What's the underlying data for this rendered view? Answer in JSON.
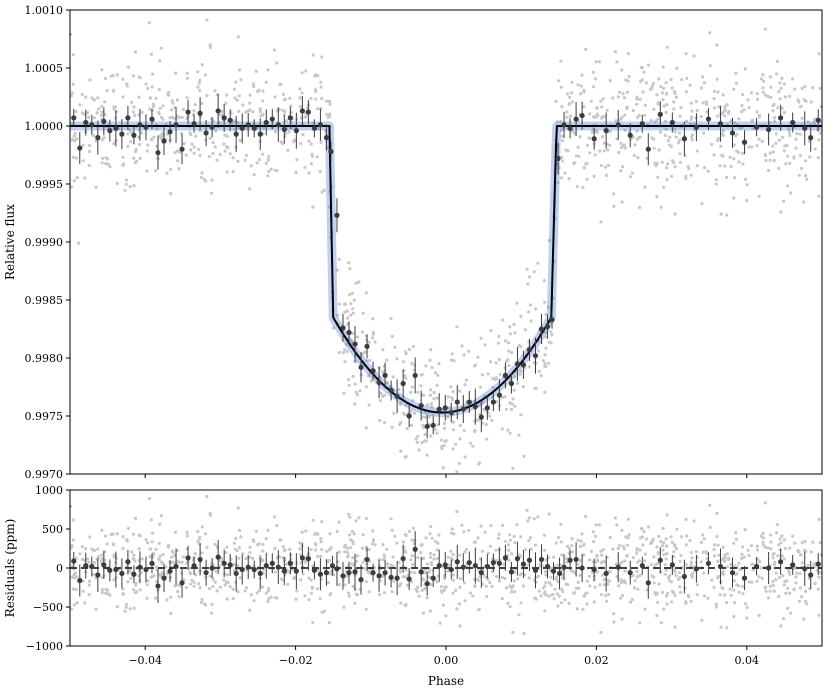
{
  "chart_data": [
    {
      "type": "scatter",
      "panel": "light-curve",
      "xlabel": "",
      "ylabel": "Relative flux",
      "xlim": [
        -0.05,
        0.05
      ],
      "ylim": [
        0.997,
        1.001
      ],
      "xticks": [
        -0.04,
        -0.02,
        0.0,
        0.02,
        0.04
      ],
      "yticks": [
        0.997,
        0.9975,
        0.998,
        0.9985,
        0.999,
        0.9995,
        1.0,
        1.0005,
        1.001
      ],
      "ytick_labels": [
        "0.9970",
        "0.9975",
        "0.9980",
        "0.9985",
        "0.9990",
        "0.9995",
        "1.0000",
        "1.0005",
        "1.0010"
      ],
      "transit": {
        "baseline": 1.0,
        "ingress_start": -0.0155,
        "full_start": -0.015,
        "full_end": 0.014,
        "egress_end": 0.0147,
        "depth_at_contact": 0.99835,
        "min_flux": 0.99753,
        "min_phase": -0.0005
      },
      "binned": [
        [
          -0.0495,
          1.00007
        ],
        [
          -0.0487,
          0.99981
        ],
        [
          -0.0479,
          1.00003
        ],
        [
          -0.0471,
          1.00001
        ],
        [
          -0.0463,
          0.9999
        ],
        [
          -0.0455,
          1.00004
        ],
        [
          -0.0447,
          0.99996
        ],
        [
          -0.0439,
          0.99998
        ],
        [
          -0.0431,
          0.99993
        ],
        [
          -0.0423,
          1.00007
        ],
        [
          -0.0415,
          0.99992
        ],
        [
          -0.0407,
          1.00001
        ],
        [
          -0.0399,
          0.99999
        ],
        [
          -0.0391,
          1.00006
        ],
        [
          -0.0383,
          0.99977
        ],
        [
          -0.0375,
          0.99987
        ],
        [
          -0.0367,
          0.99995
        ],
        [
          -0.0359,
          1.00001
        ],
        [
          -0.0351,
          0.9998
        ],
        [
          -0.0343,
          1.00012
        ],
        [
          -0.0335,
          1.00002
        ],
        [
          -0.0327,
          1.00011
        ],
        [
          -0.0319,
          0.99994
        ],
        [
          -0.0311,
          0.99999
        ],
        [
          -0.0303,
          1.00013
        ],
        [
          -0.0295,
          1.00007
        ],
        [
          -0.0287,
          1.00005
        ],
        [
          -0.0279,
          0.99993
        ],
        [
          -0.0271,
          0.99998
        ],
        [
          -0.0263,
          1.00001
        ],
        [
          -0.0255,
          0.99998
        ],
        [
          -0.0247,
          0.99993
        ],
        [
          -0.0239,
          1.00003
        ],
        [
          -0.0231,
          1.00006
        ],
        [
          -0.0223,
          1.00001
        ],
        [
          -0.0215,
          0.99997
        ],
        [
          -0.0207,
          1.00007
        ],
        [
          -0.0199,
          0.99996
        ],
        [
          -0.0191,
          1.00013
        ],
        [
          -0.0183,
          1.00012
        ],
        [
          -0.0175,
          0.99998
        ],
        [
          -0.0167,
          1.00001
        ],
        [
          -0.0159,
          0.9999
        ],
        [
          -0.0153,
          0.99978
        ],
        [
          -0.0145,
          0.99923
        ],
        [
          -0.0137,
          0.99826
        ],
        [
          -0.0129,
          0.99822
        ],
        [
          -0.0121,
          0.99812
        ],
        [
          -0.0113,
          0.99792
        ],
        [
          -0.0105,
          0.9981
        ],
        [
          -0.0097,
          0.99789
        ],
        [
          -0.0089,
          0.99779
        ],
        [
          -0.0081,
          0.99785
        ],
        [
          -0.0073,
          0.99772
        ],
        [
          -0.0065,
          0.99767
        ],
        [
          -0.0057,
          0.99778
        ],
        [
          -0.0049,
          0.9975
        ],
        [
          -0.0041,
          0.99785
        ],
        [
          -0.0033,
          0.99759
        ],
        [
          -0.0025,
          0.99741
        ],
        [
          -0.0017,
          0.99742
        ],
        [
          -0.0009,
          0.99756
        ],
        [
          -0.0001,
          0.99757
        ],
        [
          0.0007,
          0.99753
        ],
        [
          0.0015,
          0.99762
        ],
        [
          0.0023,
          0.99756
        ],
        [
          0.0031,
          0.99762
        ],
        [
          0.0039,
          0.99758
        ],
        [
          0.0047,
          0.99749
        ],
        [
          0.0055,
          0.99757
        ],
        [
          0.0063,
          0.99762
        ],
        [
          0.0071,
          0.99768
        ],
        [
          0.0079,
          0.99785
        ],
        [
          0.0087,
          0.99778
        ],
        [
          0.0095,
          0.99795
        ],
        [
          0.0103,
          0.99794
        ],
        [
          0.0111,
          0.99807
        ],
        [
          0.0119,
          0.99802
        ],
        [
          0.0127,
          0.99825
        ],
        [
          0.0135,
          0.99827
        ],
        [
          0.0141,
          0.99833
        ],
        [
          0.0149,
          0.99972
        ],
        [
          0.0157,
          1.00001
        ],
        [
          0.0165,
          0.99998
        ],
        [
          0.0173,
          1.00006
        ],
        [
          0.0181,
          1.00009
        ],
        [
          0.0197,
          0.99989
        ],
        [
          0.0213,
          0.99996
        ],
        [
          0.0229,
          1.00001
        ],
        [
          0.0245,
          0.99992
        ],
        [
          0.0261,
          1.00002
        ],
        [
          0.0269,
          0.9998
        ],
        [
          0.0285,
          1.0001
        ],
        [
          0.0301,
          1.00003
        ],
        [
          0.0317,
          0.99989
        ],
        [
          0.0333,
          0.99999
        ],
        [
          0.0349,
          1.00006
        ],
        [
          0.0365,
          1.00002
        ],
        [
          0.0381,
          0.99994
        ],
        [
          0.0397,
          0.99986
        ],
        [
          0.0413,
          0.99999
        ],
        [
          0.0429,
          0.99997
        ],
        [
          0.0445,
          1.00007
        ],
        [
          0.0461,
          1.00003
        ],
        [
          0.0477,
          0.99998
        ],
        [
          0.0485,
          0.9999
        ],
        [
          0.0495,
          1.00005
        ]
      ],
      "colors": {
        "raw": "#c8c8c8",
        "binned": "#3c3c3c",
        "model": "#000000",
        "model_band": "#4a78d6"
      }
    },
    {
      "type": "scatter",
      "panel": "residuals",
      "xlabel": "Phase",
      "ylabel": "Residuals (ppm)",
      "xlim": [
        -0.05,
        0.05
      ],
      "ylim": [
        -1000,
        1000
      ],
      "xticks": [
        -0.04,
        -0.02,
        0.0,
        0.02,
        0.04
      ],
      "xtick_labels": [
        "−0.04",
        "−0.02",
        "0.00",
        "0.02",
        "0.04"
      ],
      "yticks": [
        -1000,
        -500,
        0,
        500,
        1000
      ],
      "ytick_labels": [
        "−1000",
        "−500",
        "0",
        "500",
        "1000"
      ],
      "zero_line": 0,
      "binned": [
        [
          -0.0495,
          90
        ],
        [
          -0.0487,
          -160
        ],
        [
          -0.0479,
          30
        ],
        [
          -0.0471,
          20
        ],
        [
          -0.0463,
          -90
        ],
        [
          -0.0455,
          40
        ],
        [
          -0.0447,
          -30
        ],
        [
          -0.0439,
          -20
        ],
        [
          -0.0431,
          -70
        ],
        [
          -0.0423,
          80
        ],
        [
          -0.0415,
          -80
        ],
        [
          -0.0407,
          10
        ],
        [
          -0.0399,
          -20
        ],
        [
          -0.0391,
          60
        ],
        [
          -0.0383,
          -230
        ],
        [
          -0.0375,
          -130
        ],
        [
          -0.0367,
          -40
        ],
        [
          -0.0359,
          20
        ],
        [
          -0.0351,
          -190
        ],
        [
          -0.0343,
          130
        ],
        [
          -0.0335,
          30
        ],
        [
          -0.0327,
          110
        ],
        [
          -0.0319,
          -60
        ],
        [
          -0.0311,
          0
        ],
        [
          -0.0303,
          140
        ],
        [
          -0.0295,
          60
        ],
        [
          -0.0287,
          40
        ],
        [
          -0.0279,
          -70
        ],
        [
          -0.0271,
          -20
        ],
        [
          -0.0263,
          10
        ],
        [
          -0.0255,
          -20
        ],
        [
          -0.0247,
          -70
        ],
        [
          -0.0239,
          30
        ],
        [
          -0.0231,
          60
        ],
        [
          -0.0223,
          10
        ],
        [
          -0.0215,
          -40
        ],
        [
          -0.0207,
          60
        ],
        [
          -0.0199,
          -40
        ],
        [
          -0.0191,
          130
        ],
        [
          -0.0183,
          120
        ],
        [
          -0.0175,
          -30
        ],
        [
          -0.0167,
          -80
        ],
        [
          -0.0159,
          -60
        ],
        [
          -0.0151,
          30
        ],
        [
          -0.0145,
          -10
        ],
        [
          -0.0137,
          -100
        ],
        [
          -0.0129,
          -60
        ],
        [
          -0.0121,
          -50
        ],
        [
          -0.0113,
          -150
        ],
        [
          -0.0105,
          110
        ],
        [
          -0.0097,
          -60
        ],
        [
          -0.0089,
          -100
        ],
        [
          -0.0081,
          -60
        ],
        [
          -0.0073,
          -120
        ],
        [
          -0.0065,
          -130
        ],
        [
          -0.0057,
          120
        ],
        [
          -0.0049,
          -140
        ],
        [
          -0.0041,
          240
        ],
        [
          -0.0033,
          -50
        ],
        [
          -0.0025,
          -200
        ],
        [
          -0.0017,
          -130
        ],
        [
          -0.0009,
          30
        ],
        [
          -0.0001,
          40
        ],
        [
          0.0007,
          -20
        ],
        [
          0.0015,
          80
        ],
        [
          0.0023,
          10
        ],
        [
          0.0031,
          70
        ],
        [
          0.0039,
          30
        ],
        [
          0.0047,
          -60
        ],
        [
          0.0055,
          20
        ],
        [
          0.0063,
          70
        ],
        [
          0.0071,
          60
        ],
        [
          0.0079,
          130
        ],
        [
          0.0087,
          -50
        ],
        [
          0.0095,
          120
        ],
        [
          0.0103,
          50
        ],
        [
          0.0111,
          100
        ],
        [
          0.0119,
          -30
        ],
        [
          0.0127,
          110
        ],
        [
          0.0135,
          20
        ],
        [
          0.0143,
          -40
        ],
        [
          0.0151,
          -70
        ],
        [
          0.0157,
          10
        ],
        [
          0.0165,
          100
        ],
        [
          0.0173,
          110
        ],
        [
          0.0181,
          0
        ],
        [
          0.0197,
          -20
        ],
        [
          0.0213,
          -70
        ],
        [
          0.0229,
          10
        ],
        [
          0.0245,
          -60
        ],
        [
          0.0261,
          30
        ],
        [
          0.0269,
          -190
        ],
        [
          0.0285,
          100
        ],
        [
          0.0301,
          40
        ],
        [
          0.0317,
          -110
        ],
        [
          0.0333,
          -10
        ],
        [
          0.0349,
          60
        ],
        [
          0.0365,
          20
        ],
        [
          0.0381,
          -60
        ],
        [
          0.0397,
          -130
        ],
        [
          0.0413,
          20
        ],
        [
          0.0429,
          0
        ],
        [
          0.0445,
          80
        ],
        [
          0.0461,
          40
        ],
        [
          0.0477,
          -10
        ],
        [
          0.0485,
          -90
        ],
        [
          0.0495,
          50
        ]
      ],
      "colors": {
        "raw": "#c8c8c8",
        "binned": "#3c3c3c",
        "zero_line": "#000000"
      }
    }
  ]
}
